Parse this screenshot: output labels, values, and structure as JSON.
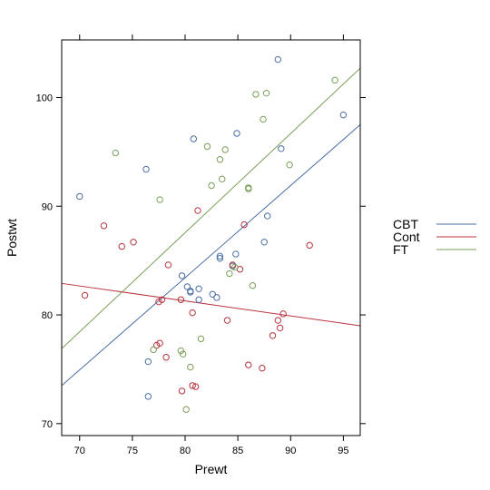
{
  "chart_data": {
    "type": "scatter",
    "title": "",
    "xlabel": "Prewt",
    "ylabel": "Postwt",
    "xlim": [
      68.3,
      96.6
    ],
    "ylim": [
      68.9,
      105.3
    ],
    "x_ticks": [
      70,
      75,
      80,
      85,
      90,
      95
    ],
    "y_ticks": [
      70,
      80,
      90,
      100
    ],
    "grid": false,
    "legend_position": "right",
    "series": [
      {
        "name": "CBT",
        "color": "#4a6fa5",
        "fit_line": [
          [
            68.3,
            73.5
          ],
          [
            96.6,
            97.5
          ]
        ],
        "points": [
          [
            70.0,
            90.9
          ],
          [
            76.3,
            93.4
          ],
          [
            76.5,
            75.7
          ],
          [
            76.5,
            72.5
          ],
          [
            79.7,
            83.6
          ],
          [
            80.2,
            82.6
          ],
          [
            80.5,
            82.1
          ],
          [
            80.5,
            82.2
          ],
          [
            80.8,
            96.2
          ],
          [
            81.3,
            81.4
          ],
          [
            81.3,
            82.4
          ],
          [
            82.6,
            81.9
          ],
          [
            83.0,
            81.6
          ],
          [
            83.3,
            85.2
          ],
          [
            83.3,
            85.4
          ],
          [
            84.5,
            84.5
          ],
          [
            84.8,
            85.6
          ],
          [
            84.9,
            96.7
          ],
          [
            87.5,
            86.7
          ],
          [
            87.8,
            89.1
          ],
          [
            88.8,
            103.5
          ],
          [
            89.1,
            95.3
          ],
          [
            95.0,
            98.4
          ]
        ]
      },
      {
        "name": "Cont",
        "color": "#b8333f",
        "fit_line": [
          [
            68.3,
            82.9
          ],
          [
            96.6,
            79.0
          ]
        ],
        "points": [
          [
            70.5,
            81.8
          ],
          [
            72.3,
            88.2
          ],
          [
            74.0,
            86.3
          ],
          [
            75.1,
            86.7
          ],
          [
            77.3,
            77.2
          ],
          [
            77.5,
            81.2
          ],
          [
            77.6,
            77.4
          ],
          [
            77.8,
            81.4
          ],
          [
            78.2,
            76.1
          ],
          [
            78.4,
            84.6
          ],
          [
            79.6,
            81.4
          ],
          [
            79.7,
            73.0
          ],
          [
            80.7,
            80.2
          ],
          [
            80.7,
            73.5
          ],
          [
            81.0,
            73.4
          ],
          [
            81.2,
            89.6
          ],
          [
            84.0,
            79.5
          ],
          [
            84.5,
            84.6
          ],
          [
            85.2,
            84.2
          ],
          [
            85.6,
            88.3
          ],
          [
            86.0,
            75.4
          ],
          [
            87.3,
            75.1
          ],
          [
            88.3,
            78.1
          ],
          [
            88.8,
            79.5
          ],
          [
            89.0,
            78.8
          ],
          [
            89.3,
            80.1
          ],
          [
            91.8,
            86.4
          ]
        ]
      },
      {
        "name": "FT",
        "color": "#7a9e57",
        "fit_line": [
          [
            68.3,
            76.9
          ],
          [
            96.6,
            102.7
          ]
        ],
        "points": [
          [
            73.4,
            94.9
          ],
          [
            77.0,
            76.8
          ],
          [
            77.6,
            90.6
          ],
          [
            79.6,
            76.7
          ],
          [
            79.8,
            76.4
          ],
          [
            80.1,
            71.3
          ],
          [
            80.5,
            75.2
          ],
          [
            81.5,
            77.8
          ],
          [
            82.1,
            95.5
          ],
          [
            82.5,
            91.9
          ],
          [
            83.3,
            94.3
          ],
          [
            83.5,
            92.5
          ],
          [
            83.8,
            95.2
          ],
          [
            84.2,
            83.8
          ],
          [
            84.7,
            84.4
          ],
          [
            86.0,
            91.6
          ],
          [
            86.0,
            91.7
          ],
          [
            86.4,
            82.7
          ],
          [
            86.7,
            100.3
          ],
          [
            87.4,
            98.0
          ],
          [
            87.7,
            100.4
          ],
          [
            89.9,
            93.8
          ],
          [
            94.2,
            101.6
          ]
        ]
      }
    ]
  }
}
